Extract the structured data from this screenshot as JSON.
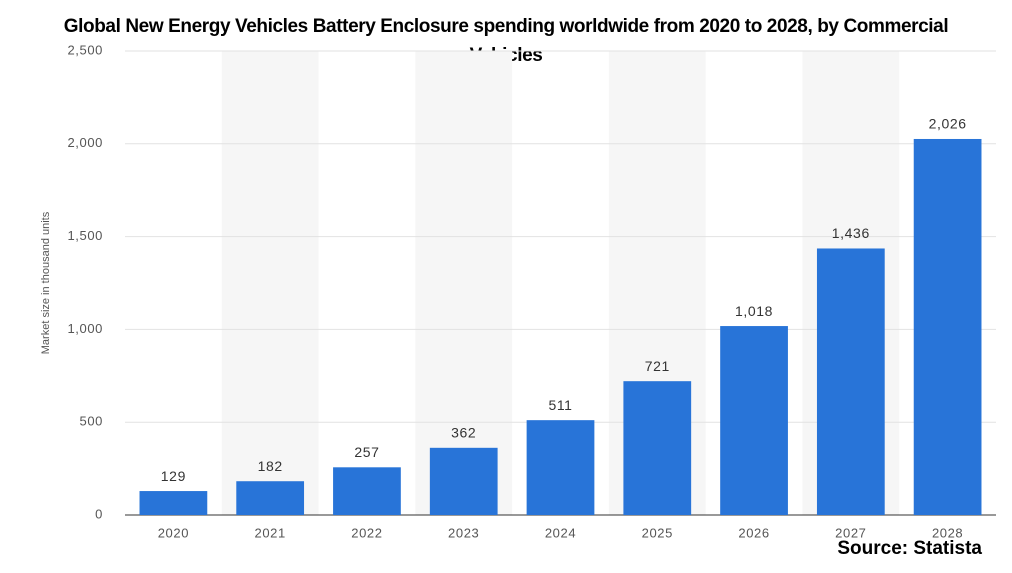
{
  "chart_data": {
    "type": "bar",
    "title": "Global New Energy Vehicles Battery Enclosure spending worldwide from 2020 to 2028, by Commercial Vehicles",
    "y_label": "Market size in thousand units",
    "source": "Source: Statista",
    "categories": [
      "2020",
      "2021",
      "2022",
      "2023",
      "2024",
      "2025",
      "2026",
      "2027",
      "2028"
    ],
    "values": [
      129,
      182,
      257,
      362,
      511,
      721,
      1018,
      1436,
      2026
    ],
    "value_labels": [
      "129",
      "182",
      "257",
      "362",
      "511",
      "721",
      "1,018",
      "1,436",
      "2,026"
    ],
    "color": "#2874d8",
    "ylim": [
      0,
      2500
    ],
    "yticks": [
      0,
      500,
      {
        "value": 1000,
        "label": "1,000"
      },
      {
        "value": 1500,
        "label": "1,500"
      },
      {
        "value": 2000,
        "label": "2,000"
      },
      {
        "value": 2500,
        "label": "2,500"
      }
    ],
    "grid": true
  }
}
